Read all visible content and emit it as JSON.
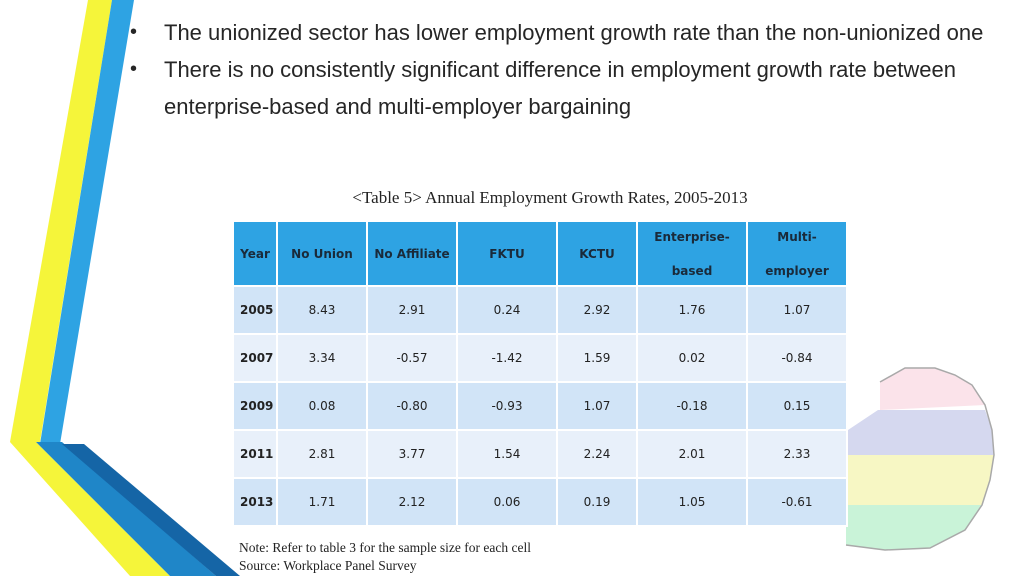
{
  "bullets": [
    "The unionized sector has lower employment growth rate than the non-unionized one",
    "There is no consistently significant difference in employment growth rate between enterprise-based and multi-employer bargaining"
  ],
  "table": {
    "caption": "<Table 5> Annual Employment Growth Rates, 2005-2013",
    "headers": {
      "year": "Year",
      "no_union": "No Union",
      "no_affiliate": "No Affiliate",
      "fktu": "FKTU",
      "kctu": "KCTU",
      "enterprise_line1": "Enterprise-",
      "enterprise_line2": "based",
      "multi_line1": "Multi-",
      "multi_line2": "employer"
    },
    "rows": [
      {
        "year": "2005",
        "values": [
          "8.43",
          "2.91",
          "0.24",
          "2.92",
          "1.76",
          "1.07"
        ]
      },
      {
        "year": "2007",
        "values": [
          "3.34",
          "-0.57",
          "-1.42",
          "1.59",
          "0.02",
          "-0.84"
        ]
      },
      {
        "year": "2009",
        "values": [
          "0.08",
          "-0.80",
          "-0.93",
          "1.07",
          "-0.18",
          "0.15"
        ]
      },
      {
        "year": "2011",
        "values": [
          "2.81",
          "3.77",
          "1.54",
          "2.24",
          "2.01",
          "2.33"
        ]
      },
      {
        "year": "2013",
        "values": [
          "1.71",
          "2.12",
          "0.06",
          "0.19",
          "1.05",
          "-0.61"
        ]
      }
    ]
  },
  "note": "Note: Refer to table 3 for the sample size for each cell",
  "source": "Source: Workplace Panel Survey",
  "colors": {
    "header_bg": "#2ea3e3",
    "row_bg": "#d1e4f7",
    "stripe_yellow": "#f5f53a",
    "stripe_blue": "#2ea3e3"
  }
}
